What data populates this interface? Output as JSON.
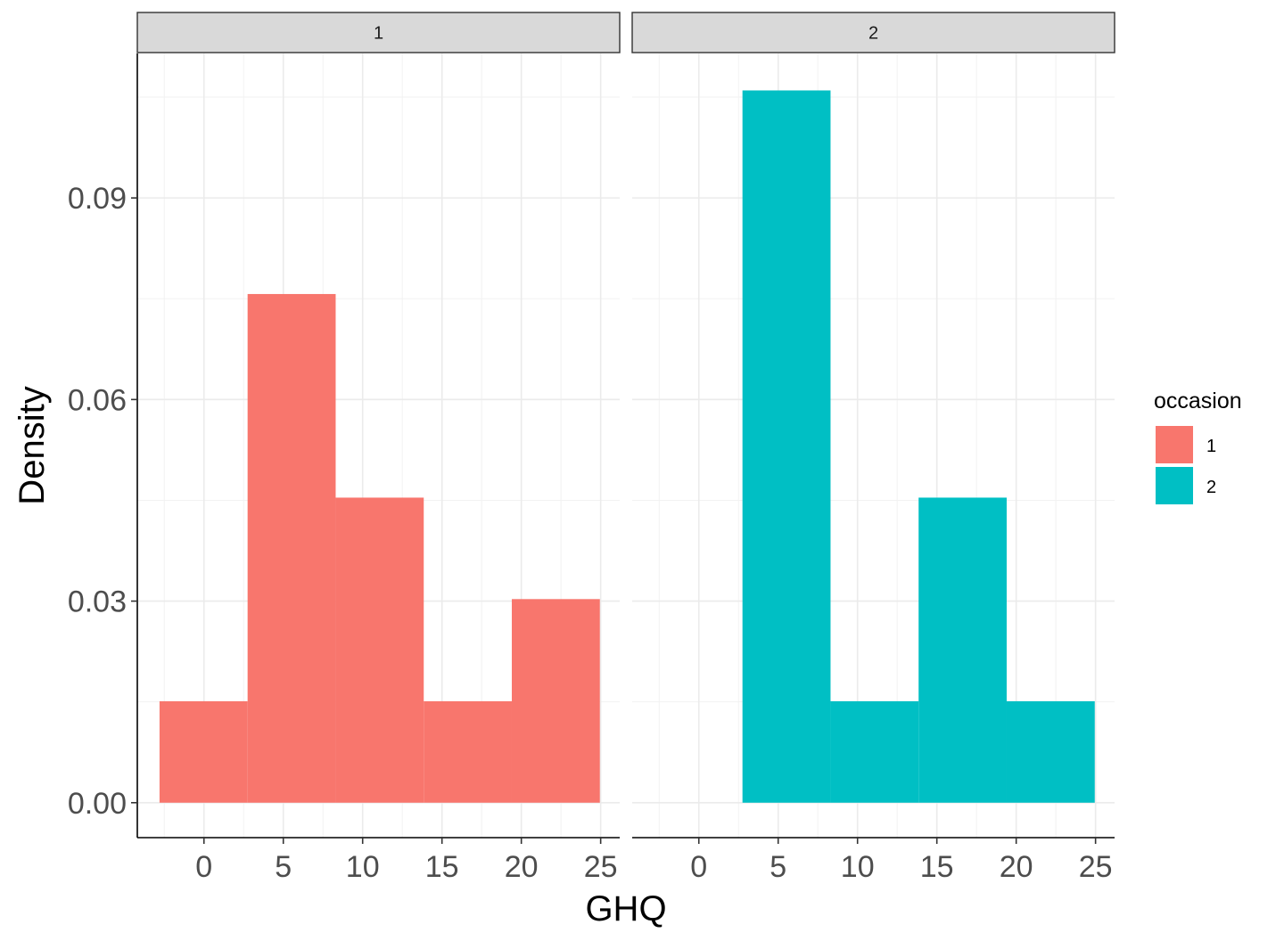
{
  "chart_data": {
    "type": "bar",
    "xlabel": "GHQ",
    "ylabel": "Density",
    "xlim": [
      -4.2,
      26.2
    ],
    "ylim": [
      -0.0052,
      0.1115
    ],
    "x_ticks": [
      0,
      5,
      10,
      15,
      20,
      25
    ],
    "y_ticks": [
      0.0,
      0.03,
      0.06,
      0.09
    ],
    "y_tick_labels": [
      "0.00",
      "0.03",
      "0.06",
      "0.09"
    ],
    "grid": true,
    "legend": {
      "title": "occasion",
      "position": "right",
      "entries": [
        {
          "label": "1",
          "color": "#F8766D"
        },
        {
          "label": "2",
          "color": "#00BFC4"
        }
      ]
    },
    "panels": [
      {
        "strip": "1",
        "color": "#F8766D",
        "bins": [
          {
            "x0": -2.8,
            "x1": 2.75,
            "density": 0.0151
          },
          {
            "x0": 2.75,
            "x1": 8.3,
            "density": 0.0757
          },
          {
            "x0": 8.3,
            "x1": 13.85,
            "density": 0.0454
          },
          {
            "x0": 13.85,
            "x1": 19.4,
            "density": 0.0151
          },
          {
            "x0": 19.4,
            "x1": 24.95,
            "density": 0.0303
          }
        ]
      },
      {
        "strip": "2",
        "color": "#00BFC4",
        "bins": [
          {
            "x0": -2.8,
            "x1": 2.75,
            "density": 0.0
          },
          {
            "x0": 2.75,
            "x1": 8.3,
            "density": 0.106
          },
          {
            "x0": 8.3,
            "x1": 13.85,
            "density": 0.0151
          },
          {
            "x0": 13.85,
            "x1": 19.4,
            "density": 0.0454
          },
          {
            "x0": 19.4,
            "x1": 24.95,
            "density": 0.0151
          }
        ]
      }
    ]
  }
}
